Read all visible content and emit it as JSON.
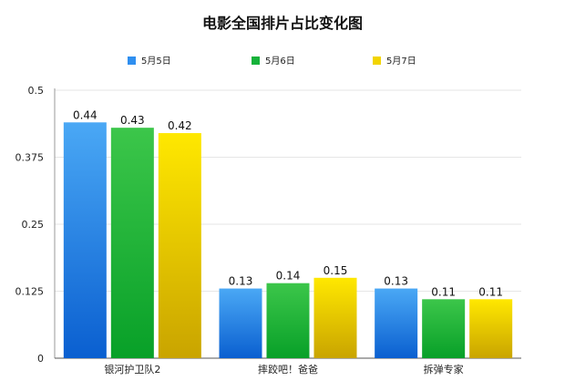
{
  "chart_data": {
    "type": "bar",
    "title": "电影全国排片占比变化图",
    "categories": [
      "银河护卫队2",
      "摔跤吧！爸爸",
      "拆弹专家"
    ],
    "series": [
      {
        "name": "5月5日",
        "values": [
          0.44,
          0.13,
          0.13
        ],
        "color_top": "#4aa8f5",
        "color_bottom": "#0a5fd0"
      },
      {
        "name": "5月6日",
        "values": [
          0.43,
          0.14,
          0.11
        ],
        "color_top": "#3cc64a",
        "color_bottom": "#08a028"
      },
      {
        "name": "5月7日",
        "values": [
          0.42,
          0.15,
          0.11
        ],
        "color_top": "#ffe800",
        "color_bottom": "#c9a400"
      }
    ],
    "yticks": [
      "0",
      "0.125",
      "0.25",
      "0.375",
      "0.5"
    ],
    "ylim": [
      0,
      0.5
    ],
    "grid": true,
    "legend_position": "top"
  }
}
